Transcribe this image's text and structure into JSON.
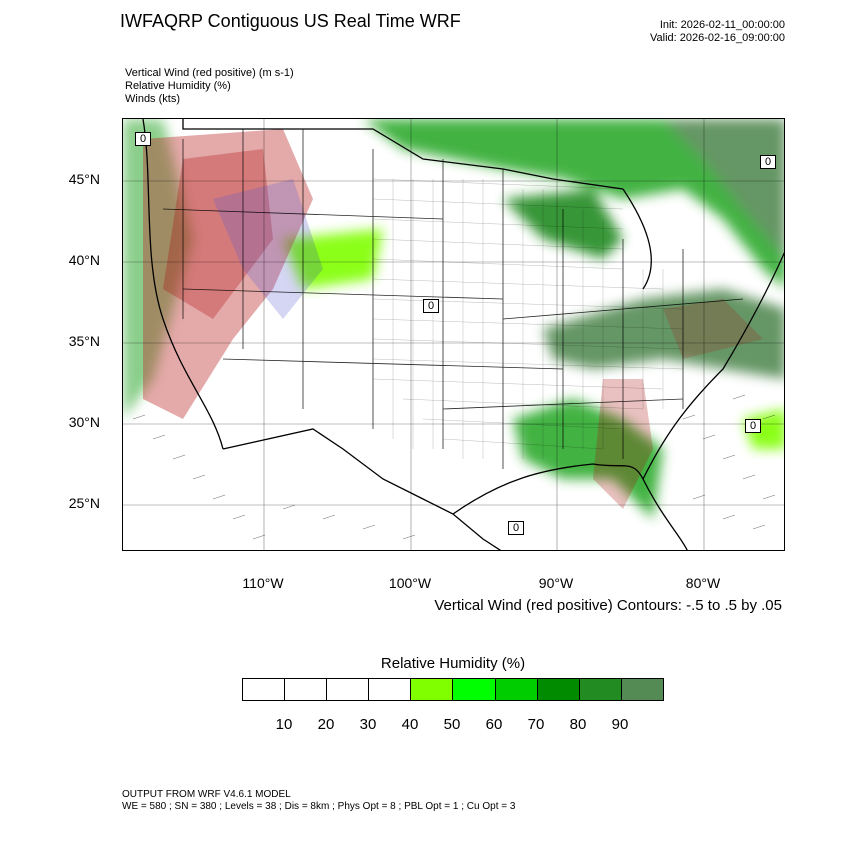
{
  "header": {
    "title": "IWFAQRP Contiguous US Real Time WRF",
    "init": "Init: 2026-02-11_00:00:00",
    "valid": "Valid: 2026-02-16_09:00:00"
  },
  "fields": [
    "Vertical Wind (red positive)   (m s-1)",
    "Relative Humidity   (%)",
    "Winds   (kts)"
  ],
  "map": {
    "lat_labels": [
      "45°N",
      "40°N",
      "35°N",
      "30°N",
      "25°N"
    ],
    "lon_labels": [
      "110°W",
      "100°W",
      "90°W",
      "80°W"
    ],
    "wind_label": "0",
    "contour_text": "Vertical Wind (red positive) Contours: -.5 to .5 by .05",
    "colors": {
      "vertical_positive": "#b01010",
      "vertical_negative": "#2020c8",
      "humidity_green": "#2faa2f"
    }
  },
  "colorbar": {
    "title": "Relative Humidity  (%)",
    "labels": [
      "10",
      "20",
      "30",
      "40",
      "50",
      "60",
      "70",
      "80",
      "90"
    ],
    "colors": [
      "#ffffff",
      "#ffffff",
      "#ffffff",
      "#ffffff",
      "#7fff00",
      "#00ff00",
      "#00cd00",
      "#008b00",
      "#228b22",
      "#548b54"
    ]
  },
  "footer": {
    "line1": "OUTPUT FROM WRF V4.6.1 MODEL",
    "line2": "WE = 580 ; SN = 380 ; Levels = 38 ; Dis = 8km ; Phys Opt = 8 ; PBL Opt = 1 ; Cu Opt = 3"
  }
}
